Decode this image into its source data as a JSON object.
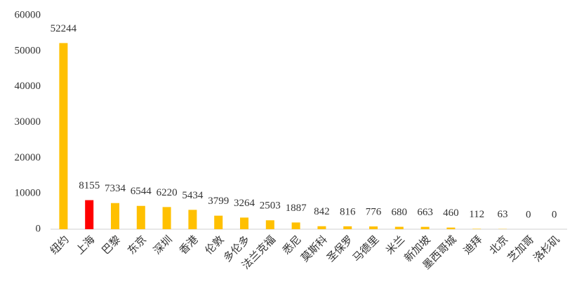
{
  "chart_data": {
    "type": "bar",
    "categories": [
      "纽约",
      "上海",
      "巴黎",
      "东京",
      "深圳",
      "香港",
      "伦敦",
      "多伦多",
      "法兰克福",
      "悉尼",
      "莫斯科",
      "圣保罗",
      "马德里",
      "米兰",
      "新加坡",
      "墨西哥城",
      "迪拜",
      "北京",
      "芝加哥",
      "洛杉矶"
    ],
    "values": [
      52244,
      8155,
      7334,
      6544,
      6220,
      5434,
      3799,
      3264,
      2503,
      1887,
      842,
      816,
      776,
      680,
      663,
      460,
      112,
      63,
      0,
      0
    ],
    "colors": [
      "#ffc000",
      "#ff0000",
      "#ffc000",
      "#ffc000",
      "#ffc000",
      "#ffc000",
      "#ffc000",
      "#ffc000",
      "#ffc000",
      "#ffc000",
      "#ffc000",
      "#ffc000",
      "#ffc000",
      "#ffc000",
      "#ffc000",
      "#ffc000",
      "#ffc000",
      "#ffc000",
      "#ffc000",
      "#ffc000"
    ],
    "ylim": [
      0,
      60000
    ],
    "yticks": [
      0,
      10000,
      20000,
      30000,
      40000,
      50000,
      60000
    ],
    "grid": false
  }
}
